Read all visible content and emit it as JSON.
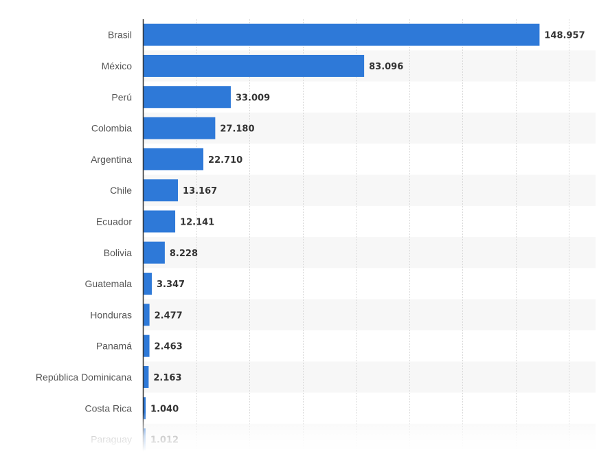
{
  "colors": {
    "bar": "#2e79d8",
    "band": "#f7f7f7",
    "grid": "#d9d9d9",
    "axis": "#333333"
  },
  "chart_data": {
    "type": "bar",
    "orientation": "horizontal",
    "categories": [
      "Brasil",
      "México",
      "Perú",
      "Colombia",
      "Argentina",
      "Chile",
      "Ecuador",
      "Bolivia",
      "Guatemala",
      "Honduras",
      "Panamá",
      "República Dominicana",
      "Costa Rica",
      "Paraguay"
    ],
    "values": [
      148957,
      83096,
      33009,
      27180,
      22710,
      13167,
      12141,
      8228,
      3347,
      2477,
      2463,
      2163,
      1040,
      1012
    ],
    "value_labels": [
      "148.957",
      "83.096",
      "33.009",
      "27.180",
      "22.710",
      "13.167",
      "12.141",
      "8.228",
      "3.347",
      "2.477",
      "2.463",
      "2.163",
      "1.040",
      "1.012"
    ],
    "xlim": [
      0,
      170000
    ],
    "grid": true,
    "title": "",
    "xlabel": "",
    "ylabel": ""
  }
}
